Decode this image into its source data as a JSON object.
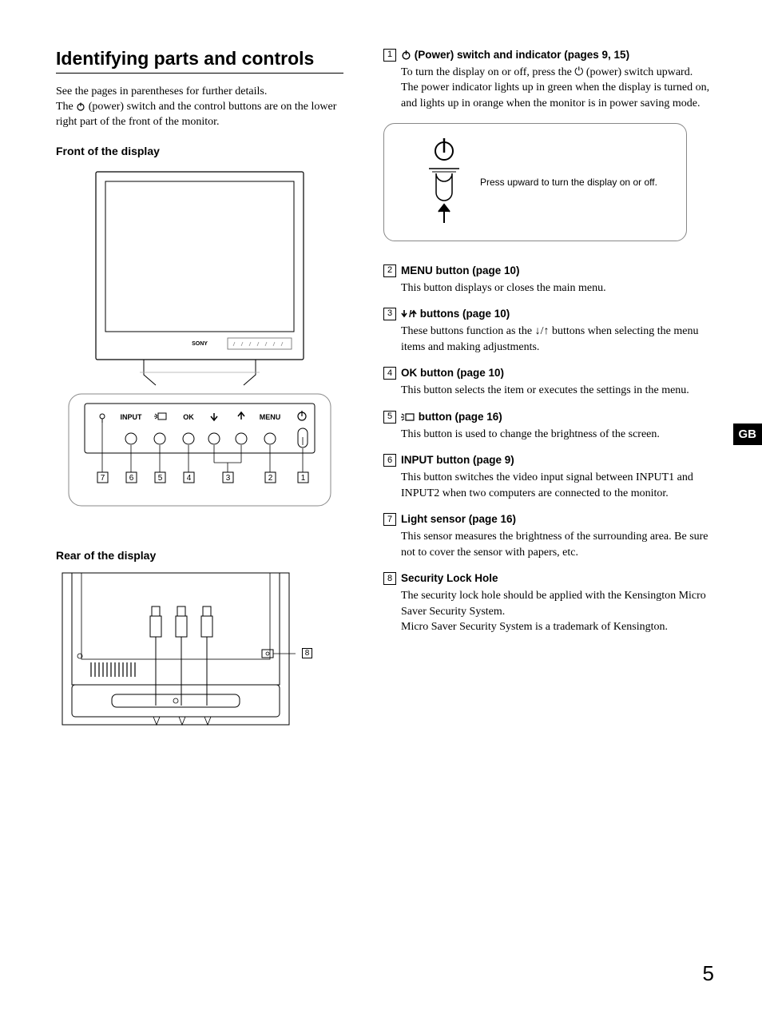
{
  "title": "Identifying parts and controls",
  "intro1": "See the pages in parentheses for further details.",
  "intro2a": "The ",
  "intro2b": " (power) switch and the control buttons are on the lower right part of the front of the monitor.",
  "frontHeading": "Front of the display",
  "rearHeading": "Rear of the display",
  "brandLabel": "SONY",
  "bezel": {
    "input": "INPUT",
    "ok": "OK",
    "menu": "MENU"
  },
  "bezelNums": [
    "7",
    "6",
    "5",
    "4",
    "3",
    "2",
    "1"
  ],
  "rearCallout": "8",
  "powerBoxText": "Press upward to turn the display on or off.",
  "gb": "GB",
  "pageNumber": "5",
  "items": [
    {
      "num": "1",
      "titlePre": "",
      "titleIcon": "power",
      "title": " (Power) switch and indicator (pages 9, 15)",
      "desc": "To turn the display on or off, press the ⏻ (power) switch upward.\nThe power indicator lights up in green when the display is turned on, and lights up in orange when the monitor is in power saving mode."
    },
    {
      "num": "2",
      "title": "MENU button (page 10)",
      "desc": "This button displays or closes the main menu."
    },
    {
      "num": "3",
      "titleIcon": "arrows",
      "title": " buttons (page 10)",
      "desc": "These buttons function as the ↓/↑ buttons when selecting the menu items and making adjustments."
    },
    {
      "num": "4",
      "title": "OK button (page 10)",
      "desc": "This button selects the item or executes the settings in the menu."
    },
    {
      "num": "5",
      "titleIcon": "brightness",
      "title": " button (page 16)",
      "desc": "This button is used to change the brightness of the screen."
    },
    {
      "num": "6",
      "title": "INPUT button (page 9)",
      "desc": "This button switches the video input signal between INPUT1 and INPUT2 when two computers are connected to the monitor."
    },
    {
      "num": "7",
      "title": "Light sensor (page 16)",
      "desc": "This sensor measures the brightness of the surrounding area. Be sure not to cover the sensor with papers, etc."
    },
    {
      "num": "8",
      "title": "Security Lock Hole",
      "desc": "The security lock hole should be applied with the Kensington Micro Saver Security System.\nMicro Saver Security System is a trademark of Kensington."
    }
  ]
}
